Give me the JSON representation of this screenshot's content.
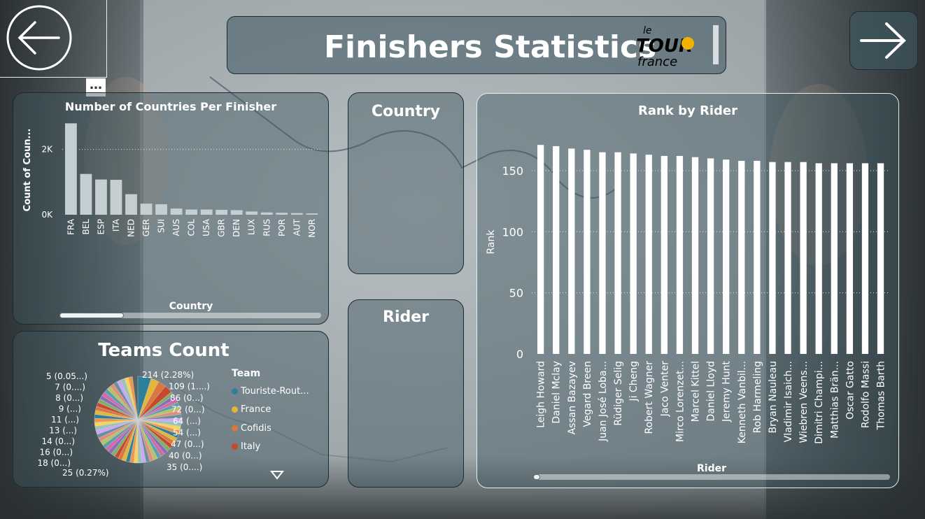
{
  "header": {
    "title": "Finishers Statistics",
    "logo_text": "le TOUR de FRANCE"
  },
  "nav": {
    "back": "back-arrow-icon",
    "forward": "forward-arrow-icon"
  },
  "more_options": "…",
  "countries_chart": {
    "title": "Number of Countries Per Finisher",
    "chart_data": {
      "type": "bar",
      "title": "Number of Countries Per Finisher",
      "xlabel": "Country",
      "ylabel": "Count of Coun...",
      "categories": [
        "FRA",
        "BEL",
        "ESP",
        "ITA",
        "NED",
        "GER",
        "SUI",
        "AUS",
        "COL",
        "USA",
        "GBR",
        "DEN",
        "LUX",
        "RUS",
        "POR",
        "AUT",
        "NOR"
      ],
      "values": [
        2800,
        1250,
        1080,
        1070,
        630,
        340,
        320,
        190,
        160,
        160,
        150,
        140,
        100,
        70,
        60,
        50,
        40
      ],
      "ylim": [
        0,
        3000
      ],
      "yticks": [
        {
          "v": 0,
          "label": "0K"
        },
        {
          "v": 2000,
          "label": "2K"
        }
      ],
      "grid": true
    }
  },
  "country_slicer": {
    "title": "Country"
  },
  "rider_slicer": {
    "title": "Rider"
  },
  "rank_chart": {
    "title": "Rank by Rider",
    "chart_data": {
      "type": "bar",
      "title": "Rank by Rider",
      "xlabel": "Rider",
      "ylabel": "Rank",
      "categories": [
        "Leigh Howard",
        "Daniel Mclay",
        "Assan Bazayev",
        "Vegard Breen",
        "Juan José Loba...",
        "Rüdiger Selig",
        "Ji Cheng",
        "Robert Wagner",
        "Jaco Venter",
        "Mirco Lorenzet...",
        "Marcel Kittel",
        "Daniel Lloyd",
        "Jeremy Hunt",
        "Kenneth Vanbil...",
        "Rob Harmeling",
        "Bryan Nauleau",
        "Vladimir Isaich...",
        "Wiebren Veens...",
        "Dimitri Champi...",
        "Matthias Brän...",
        "Oscar Gatto",
        "Rodolfo Massi",
        "Thomas Barth"
      ],
      "values": [
        171,
        170,
        168,
        167,
        165,
        165,
        164,
        163,
        162,
        162,
        161,
        160,
        159,
        158,
        158,
        157,
        157,
        157,
        156,
        156,
        156,
        156,
        156
      ],
      "ylim": [
        0,
        190
      ],
      "yticks": [
        0,
        50,
        100,
        150
      ],
      "grid": true
    }
  },
  "teams_chart": {
    "title": "Teams Count",
    "legend_title": "Team",
    "legend": [
      {
        "name": "Touriste-Rout...",
        "color": "#2f7f9a"
      },
      {
        "name": "France",
        "color": "#e3b53b"
      },
      {
        "name": "Cofidis",
        "color": "#d9773e"
      },
      {
        "name": "Italy",
        "color": "#c9472f"
      }
    ],
    "labels_left": [
      "5 (0.05...)",
      "7 (0....)",
      "8 (0...)",
      "9 (...)",
      "11 (...)",
      "13 (...)",
      "14 (0...)",
      "16 (0...)",
      "18 (0...)",
      "25 (0.27%)"
    ],
    "labels_right": [
      "214 (2.28%)",
      "109 (1....)",
      "86 (0...)",
      "72 (0...)",
      "64 (...)",
      "54 (...)",
      "47 (0...)",
      "40 (0...)",
      "35 (0....)"
    ],
    "legend_more_icon": "caret-down-icon"
  },
  "scrollbars": {
    "countries": "horizontal-scrollbar",
    "rank": "horizontal-scrollbar"
  }
}
